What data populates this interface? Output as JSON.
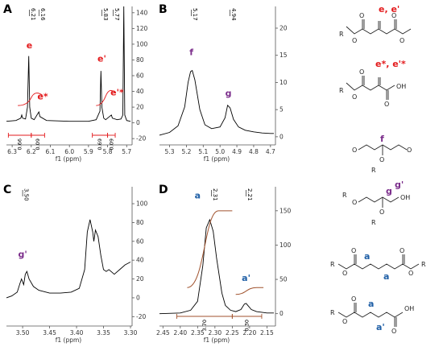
{
  "chart_data": [
    {
      "type": "line",
      "panel": "A",
      "xlabel": "f1 (ppm)",
      "xlim": [
        6.33,
        5.68
      ],
      "ylim": [
        -28,
        148
      ],
      "xticks": [
        "6.3",
        "6.2",
        "6.1",
        "6.0",
        "5.9",
        "5.8",
        "5.7"
      ],
      "yticks": [
        "140",
        "120",
        "100",
        "80",
        "60",
        "40",
        "20",
        "0",
        "-20"
      ],
      "peak_labels": [
        "6.21",
        "6.16",
        "5.83",
        "5.77"
      ],
      "annotations": [
        {
          "text": "e",
          "color": "#e31a1c",
          "x": 6.21,
          "y": 95
        },
        {
          "text": "e*",
          "color": "#e31a1c",
          "x": 6.14,
          "y": 30
        },
        {
          "text": "e'",
          "color": "#e31a1c",
          "x": 5.83,
          "y": 78
        },
        {
          "text": "e'*",
          "color": "#e31a1c",
          "x": 5.75,
          "y": 35
        }
      ],
      "integrals": [
        "0.66",
        "0.09",
        "0.69",
        "0.09"
      ],
      "series": [
        {
          "values": [
            [
              6.33,
              2
            ],
            [
              6.28,
              3
            ],
            [
              6.255,
              6
            ],
            [
              6.25,
              10
            ],
            [
              6.245,
              6
            ],
            [
              6.23,
              5
            ],
            [
              6.22,
              20
            ],
            [
              6.213,
              85
            ],
            [
              6.208,
              20
            ],
            [
              6.2,
              6
            ],
            [
              6.185,
              4
            ],
            [
              6.165,
              12
            ],
            [
              6.16,
              14
            ],
            [
              6.155,
              8
            ],
            [
              6.12,
              3
            ],
            [
              6.0,
              2
            ],
            [
              5.9,
              2
            ],
            [
              5.86,
              4
            ],
            [
              5.84,
              15
            ],
            [
              5.835,
              66
            ],
            [
              5.83,
              20
            ],
            [
              5.82,
              6
            ],
            [
              5.81,
              4
            ],
            [
              5.79,
              8
            ],
            [
              5.78,
              10
            ],
            [
              5.775,
              6
            ],
            [
              5.75,
              4
            ],
            [
              5.73,
              5
            ],
            [
              5.72,
              10
            ],
            [
              5.715,
              148
            ],
            [
              5.71,
              10
            ],
            [
              5.7,
              3
            ],
            [
              5.68,
              2
            ]
          ]
        }
      ]
    },
    {
      "type": "line",
      "panel": "B",
      "xlabel": "f1 (ppm)",
      "xlim": [
        5.36,
        4.68
      ],
      "ylim": [
        -1.5,
        24
      ],
      "xticks": [
        "5.3",
        "5.2",
        "5.1",
        "5.0",
        "4.9",
        "4.8",
        "4.7"
      ],
      "yticks": [
        "20",
        "15",
        "10",
        "5",
        "0"
      ],
      "peak_labels": [
        "5.17",
        "4.94"
      ],
      "annotations": [
        {
          "text": "f",
          "color": "#7b2d8b",
          "x": 5.17,
          "y": 15
        },
        {
          "text": "g",
          "color": "#7b2d8b",
          "x": 4.95,
          "y": 7.5
        }
      ],
      "series": [
        {
          "values": [
            [
              5.36,
              0.3
            ],
            [
              5.3,
              0.8
            ],
            [
              5.25,
              2
            ],
            [
              5.21,
              5.5
            ],
            [
              5.19,
              10
            ],
            [
              5.175,
              12
            ],
            [
              5.165,
              12.2
            ],
            [
              5.15,
              10.5
            ],
            [
              5.12,
              5
            ],
            [
              5.09,
              2.2
            ],
            [
              5.05,
              1.5
            ],
            [
              5.0,
              1.8
            ],
            [
              4.97,
              3.5
            ],
            [
              4.955,
              5.8
            ],
            [
              4.94,
              5.3
            ],
            [
              4.92,
              3.2
            ],
            [
              4.89,
              1.8
            ],
            [
              4.85,
              1.2
            ],
            [
              4.8,
              0.9
            ],
            [
              4.75,
              0.7
            ],
            [
              4.7,
              0.6
            ],
            [
              4.68,
              0.6
            ]
          ]
        }
      ]
    },
    {
      "type": "line",
      "panel": "C",
      "xlabel": "f1 (ppm)",
      "xlim": [
        3.53,
        3.3
      ],
      "ylim": [
        -30,
        118
      ],
      "xticks": [
        "3.50",
        "3.45",
        "3.40",
        "3.35",
        "3.30"
      ],
      "yticks": [
        "100",
        "80",
        "60",
        "40",
        "20",
        "0",
        "-20"
      ],
      "peak_labels": [
        "3.50"
      ],
      "annotations": [
        {
          "text": "g'",
          "color": "#7b2d8b",
          "x": 3.5,
          "y": 43
        }
      ],
      "series": [
        {
          "values": [
            [
              3.53,
              0
            ],
            [
              3.52,
              2
            ],
            [
              3.51,
              6
            ],
            [
              3.505,
              15
            ],
            [
              3.502,
              20
            ],
            [
              3.498,
              14
            ],
            [
              3.495,
              25
            ],
            [
              3.492,
              28
            ],
            [
              3.488,
              20
            ],
            [
              3.48,
              12
            ],
            [
              3.47,
              8
            ],
            [
              3.45,
              5
            ],
            [
              3.43,
              5
            ],
            [
              3.41,
              6
            ],
            [
              3.395,
              10
            ],
            [
              3.385,
              30
            ],
            [
              3.38,
              70
            ],
            [
              3.375,
              83
            ],
            [
              3.37,
              70
            ],
            [
              3.368,
              60
            ],
            [
              3.365,
              72
            ],
            [
              3.36,
              65
            ],
            [
              3.355,
              45
            ],
            [
              3.35,
              30
            ],
            [
              3.345,
              28
            ],
            [
              3.34,
              30
            ],
            [
              3.33,
              25
            ],
            [
              3.32,
              30
            ],
            [
              3.31,
              35
            ],
            [
              3.3,
              38
            ]
          ]
        }
      ]
    },
    {
      "type": "line",
      "panel": "D",
      "xlabel": "f1 (ppm)",
      "xlim": [
        2.46,
        2.13
      ],
      "ylim": [
        -18,
        185
      ],
      "xticks": [
        "2.45",
        "2.40",
        "2.35",
        "2.30",
        "2.25",
        "2.20",
        "2.15"
      ],
      "yticks": [
        "150",
        "100",
        "50",
        "0"
      ],
      "peak_labels": [
        "2.31",
        "2.21"
      ],
      "annotations": [
        {
          "text": "a",
          "color": "#1f5fa6",
          "x": 2.35,
          "y": 168
        },
        {
          "text": "a'",
          "color": "#1f5fa6",
          "x": 2.21,
          "y": 48
        }
      ],
      "integrals": [
        "3.70",
        "0.30"
      ],
      "series": [
        {
          "values": [
            [
              2.46,
              0
            ],
            [
              2.4,
              1
            ],
            [
              2.37,
              5
            ],
            [
              2.35,
              18
            ],
            [
              2.335,
              70
            ],
            [
              2.325,
              125
            ],
            [
              2.315,
              137
            ],
            [
              2.305,
              120
            ],
            [
              2.295,
              80
            ],
            [
              2.28,
              30
            ],
            [
              2.27,
              12
            ],
            [
              2.255,
              5
            ],
            [
              2.24,
              3
            ],
            [
              2.225,
              6
            ],
            [
              2.215,
              14
            ],
            [
              2.21,
              15
            ],
            [
              2.205,
              12
            ],
            [
              2.195,
              6
            ],
            [
              2.18,
              3
            ],
            [
              2.15,
              1
            ],
            [
              2.13,
              1
            ]
          ]
        }
      ]
    }
  ],
  "structures": {
    "s1": {
      "labels": [
        "e, e'"
      ],
      "atoms": [
        "R",
        "O",
        "O",
        "O",
        "O"
      ]
    },
    "s2": {
      "labels": [
        "e*, e'*"
      ],
      "atoms": [
        "R",
        "O",
        "O",
        "O",
        "OH"
      ]
    },
    "s3": {
      "labels": [
        "f"
      ],
      "atoms": [
        "O",
        "O",
        "O",
        "R"
      ]
    },
    "s4": {
      "labels": [
        "g",
        "g'"
      ],
      "atoms": [
        "R",
        "O",
        "O",
        "OH",
        "R"
      ]
    },
    "s5": {
      "labels": [
        "a",
        "a"
      ],
      "atoms": [
        "R",
        "O",
        "O",
        "O",
        "O",
        "R"
      ]
    },
    "s6": {
      "labels": [
        "a",
        "a'"
      ],
      "atoms": [
        "R",
        "O",
        "O",
        "OH",
        "O"
      ]
    }
  },
  "colors": {
    "red": "#e31a1c",
    "purple": "#7b2d8b",
    "blue": "#1f5fa6",
    "integral": "#a0522d",
    "spectrum": "#000000"
  }
}
